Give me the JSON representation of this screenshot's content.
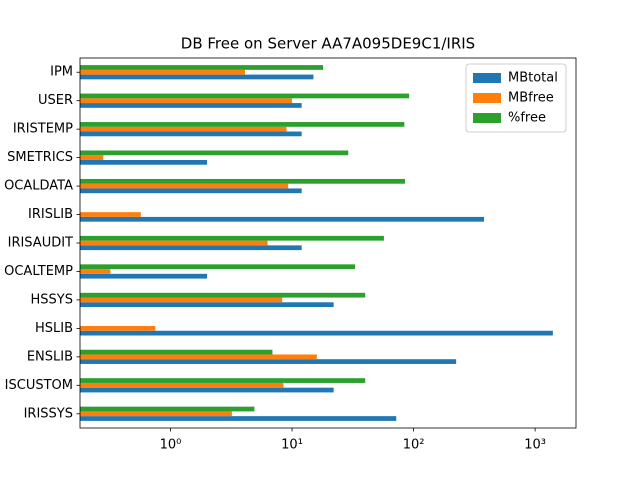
{
  "chart_data": {
    "type": "barh",
    "title": "DB Free on Server AA7A095DE9C1/IRIS",
    "categories": [
      "IRISSYS",
      "ISCUSTOM",
      "ENSLIB",
      "HSLIB",
      "HSSYS",
      "OCALTEMP",
      "IRISAUDIT",
      "IRISLIB",
      "OCALDATA",
      "SMETRICS",
      "IRISTEMP",
      "USER",
      "IPM"
    ],
    "series": [
      {
        "name": "MBtotal",
        "color": "#1f77b4",
        "values": [
          72,
          22,
          224,
          1400,
          22,
          2,
          12,
          380,
          12,
          2,
          12,
          12,
          15
        ]
      },
      {
        "name": "MBfree",
        "color": "#ff7f0e",
        "values": [
          3.2,
          8.5,
          16,
          0.75,
          8.3,
          0.32,
          6.3,
          0.57,
          9.3,
          0.28,
          9,
          10,
          4.1
        ]
      },
      {
        "name": "%free",
        "color": "#2ca02c",
        "values": [
          4.9,
          40,
          6.9,
          null,
          40,
          33,
          57,
          null,
          85,
          29,
          84,
          92,
          18
        ]
      }
    ],
    "xscale": "log",
    "xlim": [
      0.18,
      2170
    ],
    "xticks": [
      {
        "value": 1,
        "label": "10⁰"
      },
      {
        "value": 10,
        "label": "10¹"
      },
      {
        "value": 100,
        "label": "10²"
      },
      {
        "value": 1000,
        "label": "10³"
      }
    ],
    "legend": "upper right"
  }
}
